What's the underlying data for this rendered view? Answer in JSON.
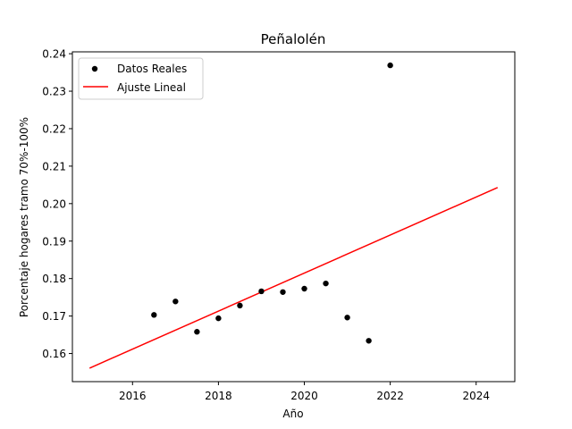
{
  "chart_data": {
    "type": "scatter",
    "title": "Peñalolén",
    "xlabel": "Año",
    "ylabel": "Porcentaje hogares tramo 70%-100%",
    "xlim": [
      2014.6,
      2024.9
    ],
    "ylim": [
      0.1525,
      0.2405
    ],
    "x_ticks": [
      2016,
      2018,
      2020,
      2022,
      2024
    ],
    "y_ticks": [
      0.16,
      0.17,
      0.18,
      0.19,
      0.2,
      0.21,
      0.22,
      0.23,
      0.24
    ],
    "grid": false,
    "legend_position": "top-left",
    "series": [
      {
        "name": "Datos Reales",
        "kind": "scatter",
        "color": "#000000",
        "x": [
          2016.5,
          2017.0,
          2017.5,
          2018.0,
          2018.5,
          2019.0,
          2019.5,
          2020.0,
          2020.5,
          2021.0,
          2021.5,
          2022.0
        ],
        "y": [
          0.1703,
          0.1739,
          0.1658,
          0.1694,
          0.1728,
          0.1766,
          0.1764,
          0.1773,
          0.1787,
          0.1696,
          0.1634,
          0.2369
        ]
      },
      {
        "name": "Ajuste Lineal",
        "kind": "line",
        "color": "#ff0000",
        "x": [
          2015.0,
          2024.5
        ],
        "y": [
          0.1561,
          0.2043
        ]
      }
    ]
  }
}
